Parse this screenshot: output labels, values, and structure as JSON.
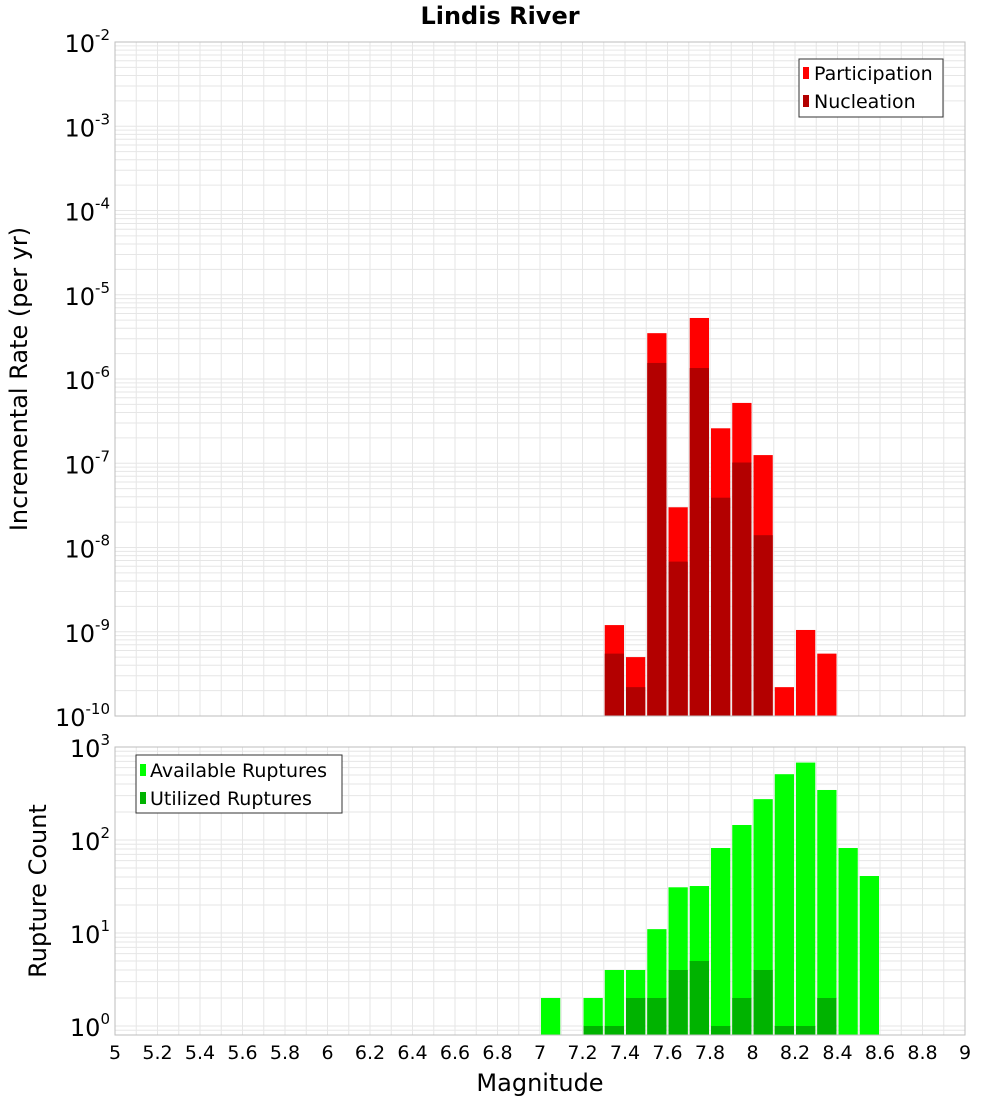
{
  "figure": {
    "title": "Lindis River",
    "xlabel": "Magnitude",
    "x_ticks": [
      "5",
      "5.2",
      "5.4",
      "5.6",
      "5.8",
      "6",
      "6.2",
      "6.4",
      "6.6",
      "6.8",
      "7",
      "7.2",
      "7.4",
      "7.6",
      "7.8",
      "8",
      "8.2",
      "8.4",
      "8.6",
      "8.8",
      "9"
    ]
  },
  "colors": {
    "participation": "#ff0000",
    "nucleation": "#b30000",
    "available": "#00ff00",
    "utilized": "#00b300",
    "grid": "#e6e6e6",
    "frame": "#bdbdbd"
  },
  "chart_data": [
    {
      "type": "bar",
      "yscale": "log",
      "ylabel": "Incremental Rate (per yr)",
      "xlim": [
        5,
        9
      ],
      "ylim": [
        1e-10,
        0.01
      ],
      "y_tick_exponents": [
        "-2",
        "-3",
        "-4",
        "-5",
        "-6",
        "-7",
        "-8",
        "-9",
        "-10"
      ],
      "y_tick_base": "10",
      "bar_width": 0.1,
      "legend": {
        "position": "top-right",
        "entries": [
          "Participation",
          "Nucleation"
        ]
      },
      "x": [
        7.35,
        7.45,
        7.55,
        7.65,
        7.75,
        7.85,
        7.95,
        8.05,
        8.15,
        8.25,
        8.35
      ],
      "series": [
        {
          "name": "Participation",
          "values": [
            1.2e-09,
            5e-10,
            3.5e-06,
            3e-08,
            5.3e-06,
            2.6e-07,
            5.2e-07,
            1.25e-07,
            2.2e-10,
            1.05e-09,
            5.5e-10
          ]
        },
        {
          "name": "Nucleation",
          "values": [
            5.5e-10,
            2.2e-10,
            1.55e-06,
            6.8e-09,
            1.35e-06,
            3.9e-08,
            1.02e-07,
            1.4e-08,
            null,
            null,
            null
          ]
        }
      ]
    },
    {
      "type": "bar",
      "yscale": "log",
      "ylabel": "Rupture Count",
      "xlim": [
        5,
        9
      ],
      "ylim": [
        0.8,
        1000
      ],
      "y_tick_exponents": [
        "3",
        "2",
        "1",
        "0"
      ],
      "y_tick_base": "10",
      "bar_width": 0.1,
      "legend": {
        "position": "top-left",
        "entries": [
          "Available Ruptures",
          "Utilized Ruptures"
        ]
      },
      "x": [
        7.05,
        7.25,
        7.35,
        7.45,
        7.55,
        7.65,
        7.75,
        7.85,
        7.95,
        8.05,
        8.15,
        8.25,
        8.35,
        8.45,
        8.55
      ],
      "series": [
        {
          "name": "Available Ruptures",
          "values": [
            2,
            2,
            4,
            4,
            11,
            31,
            32,
            82,
            145,
            275,
            510,
            680,
            345,
            82,
            41
          ]
        },
        {
          "name": "Utilized Ruptures",
          "values": [
            null,
            1,
            1,
            2,
            2,
            4,
            5,
            1,
            2,
            4,
            1,
            1,
            2,
            null,
            null
          ]
        }
      ]
    }
  ]
}
